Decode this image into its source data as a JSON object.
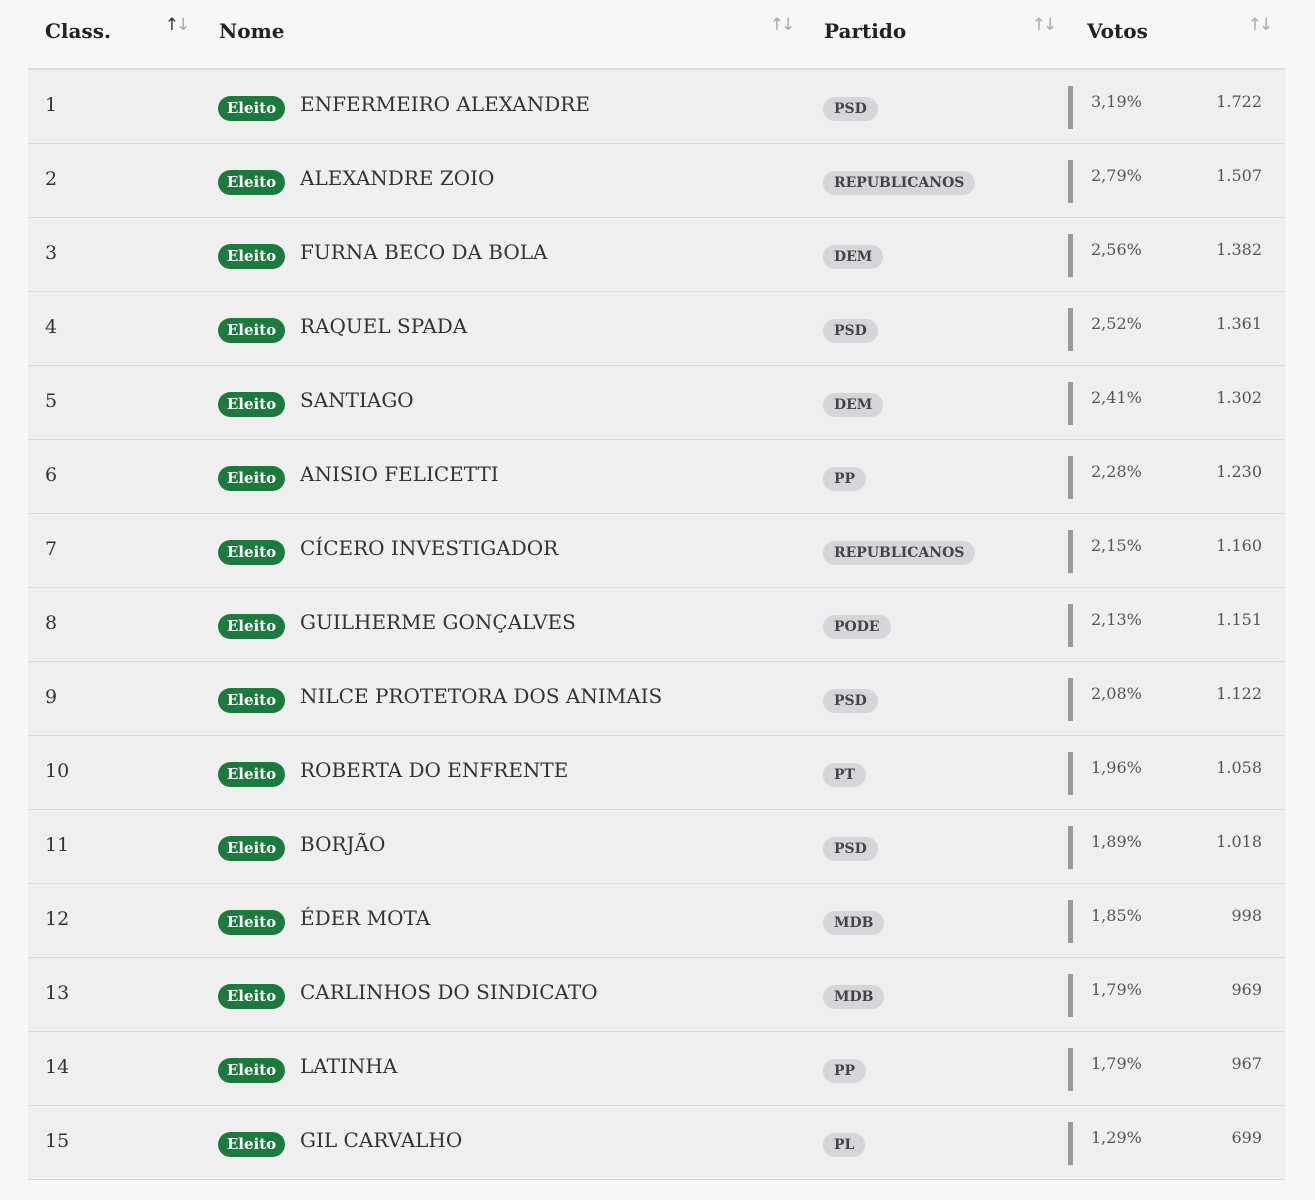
{
  "header": {
    "rank": "Class.",
    "name": "Nome",
    "party": "Partido",
    "votes": "Votos"
  },
  "icons": {
    "sort": "sort-arrows-icon",
    "status_color": "#1d7a3f"
  },
  "rows": [
    {
      "rank": "1",
      "status": "Eleito",
      "name": "ENFERMEIRO ALEXANDRE",
      "party": "PSD",
      "pct": "3,19%",
      "votes": "1.722"
    },
    {
      "rank": "2",
      "status": "Eleito",
      "name": "ALEXANDRE ZOIO",
      "party": "REPUBLICANOS",
      "pct": "2,79%",
      "votes": "1.507"
    },
    {
      "rank": "3",
      "status": "Eleito",
      "name": "FURNA BECO DA BOLA",
      "party": "DEM",
      "pct": "2,56%",
      "votes": "1.382"
    },
    {
      "rank": "4",
      "status": "Eleito",
      "name": "RAQUEL SPADA",
      "party": "PSD",
      "pct": "2,52%",
      "votes": "1.361"
    },
    {
      "rank": "5",
      "status": "Eleito",
      "name": "SANTIAGO",
      "party": "DEM",
      "pct": "2,41%",
      "votes": "1.302"
    },
    {
      "rank": "6",
      "status": "Eleito",
      "name": "ANISIO FELICETTI",
      "party": "PP",
      "pct": "2,28%",
      "votes": "1.230"
    },
    {
      "rank": "7",
      "status": "Eleito",
      "name": "CÍCERO INVESTIGADOR",
      "party": "REPUBLICANOS",
      "pct": "2,15%",
      "votes": "1.160"
    },
    {
      "rank": "8",
      "status": "Eleito",
      "name": "GUILHERME GONÇALVES",
      "party": "PODE",
      "pct": "2,13%",
      "votes": "1.151"
    },
    {
      "rank": "9",
      "status": "Eleito",
      "name": "NILCE PROTETORA DOS ANIMAIS",
      "party": "PSD",
      "pct": "2,08%",
      "votes": "1.122"
    },
    {
      "rank": "10",
      "status": "Eleito",
      "name": "ROBERTA DO ENFRENTE",
      "party": "PT",
      "pct": "1,96%",
      "votes": "1.058"
    },
    {
      "rank": "11",
      "status": "Eleito",
      "name": "BORJÃO",
      "party": "PSD",
      "pct": "1,89%",
      "votes": "1.018"
    },
    {
      "rank": "12",
      "status": "Eleito",
      "name": "ÉDER MOTA",
      "party": "MDB",
      "pct": "1,85%",
      "votes": "998"
    },
    {
      "rank": "13",
      "status": "Eleito",
      "name": "CARLINHOS DO SINDICATO",
      "party": "MDB",
      "pct": "1,79%",
      "votes": "969"
    },
    {
      "rank": "14",
      "status": "Eleito",
      "name": "LATINHA",
      "party": "PP",
      "pct": "1,79%",
      "votes": "967"
    },
    {
      "rank": "15",
      "status": "Eleito",
      "name": "GIL CARVALHO",
      "party": "PL",
      "pct": "1,29%",
      "votes": "699"
    }
  ]
}
